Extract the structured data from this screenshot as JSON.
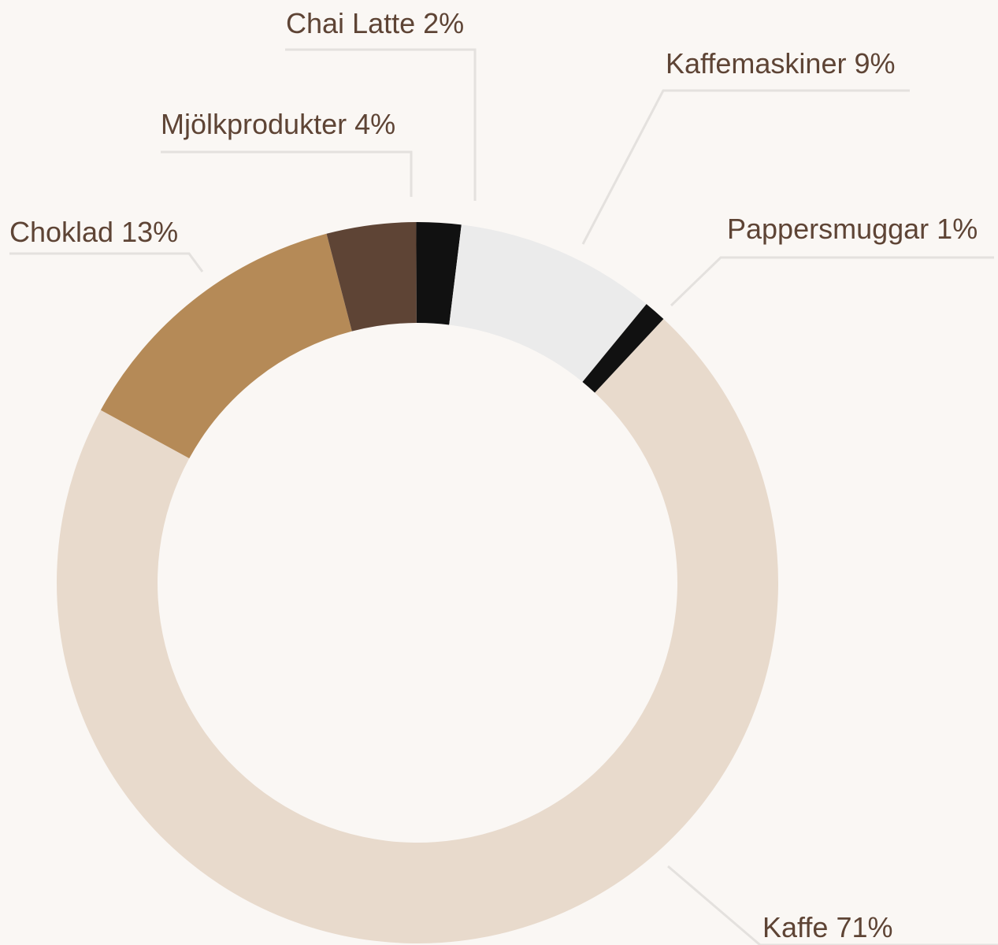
{
  "chart_data": {
    "type": "donut",
    "categories": [
      "Kaffe",
      "Choklad",
      "Mjölkprodukter",
      "Chai Latte",
      "Kaffemaskiner",
      "Pappersmuggar"
    ],
    "values": [
      71,
      13,
      4,
      2,
      9,
      1
    ],
    "value_labels": [
      "71%",
      "13%",
      "4%",
      "2%",
      "9%",
      "1%"
    ],
    "colors": [
      "#e8dacc",
      "#b58a57",
      "#5e4435",
      "#111111",
      "#ebebeb",
      "#111111"
    ]
  }
}
